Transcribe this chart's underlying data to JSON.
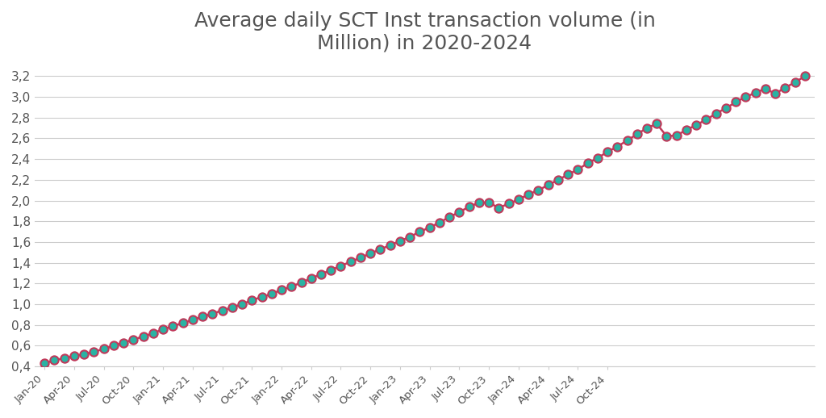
{
  "title": "Average daily SCT Inst transaction volume (in\nMillion) in 2020-2024",
  "title_color": "#555555",
  "line_color": "#c0395a",
  "marker_color": "#2ab3a3",
  "marker_edge_color": "#c0395a",
  "background_color": "#ffffff",
  "grid_color": "#cccccc",
  "tick_label_color": "#555555",
  "x_labels": [
    "Jan-20",
    "Apr-20",
    "Jul-20",
    "Oct-20",
    "Jan-21",
    "Apr-21",
    "Jul-21",
    "Oct-21",
    "Jan-22",
    "Apr-22",
    "Jul-22",
    "Oct-22",
    "Jan-23",
    "Apr-23",
    "Jul-23",
    "Oct-23",
    "Jan-24",
    "Apr-24",
    "Jul-24",
    "Oct-24"
  ],
  "values": [
    0.43,
    0.46,
    0.48,
    0.5,
    0.52,
    0.54,
    0.57,
    0.6,
    0.63,
    0.66,
    0.69,
    0.72,
    0.76,
    0.79,
    0.82,
    0.85,
    0.88,
    0.91,
    0.94,
    0.97,
    1.0,
    1.04,
    1.07,
    1.1,
    1.14,
    1.17,
    1.21,
    1.25,
    1.29,
    1.33,
    1.37,
    1.41,
    1.45,
    1.49,
    1.53,
    1.57,
    1.61,
    1.65,
    1.7,
    1.74,
    1.79,
    1.84,
    1.89,
    1.94,
    1.98,
    1.98,
    1.93,
    1.97,
    2.01,
    2.06,
    2.1,
    2.15,
    2.2,
    2.25,
    2.3,
    2.36,
    2.41,
    2.47,
    2.52,
    2.58,
    2.64,
    2.7,
    2.74,
    2.62,
    2.63,
    2.68,
    2.73,
    2.78,
    2.84,
    2.89,
    2.95,
    3.0,
    3.04,
    3.08,
    3.03,
    3.09,
    3.14,
    3.2
  ],
  "ylim": [
    0.4,
    3.3
  ],
  "yticks": [
    0.4,
    0.6,
    0.8,
    1.0,
    1.2,
    1.4,
    1.6,
    1.8,
    2.0,
    2.2,
    2.4,
    2.6,
    2.8,
    3.0,
    3.2
  ],
  "x_tick_indices": [
    0,
    3,
    6,
    9,
    12,
    15,
    18,
    21,
    24,
    27,
    30,
    33,
    36,
    39,
    42,
    45,
    48,
    51,
    54,
    57
  ],
  "figsize": [
    10.24,
    5.18
  ],
  "dpi": 100
}
